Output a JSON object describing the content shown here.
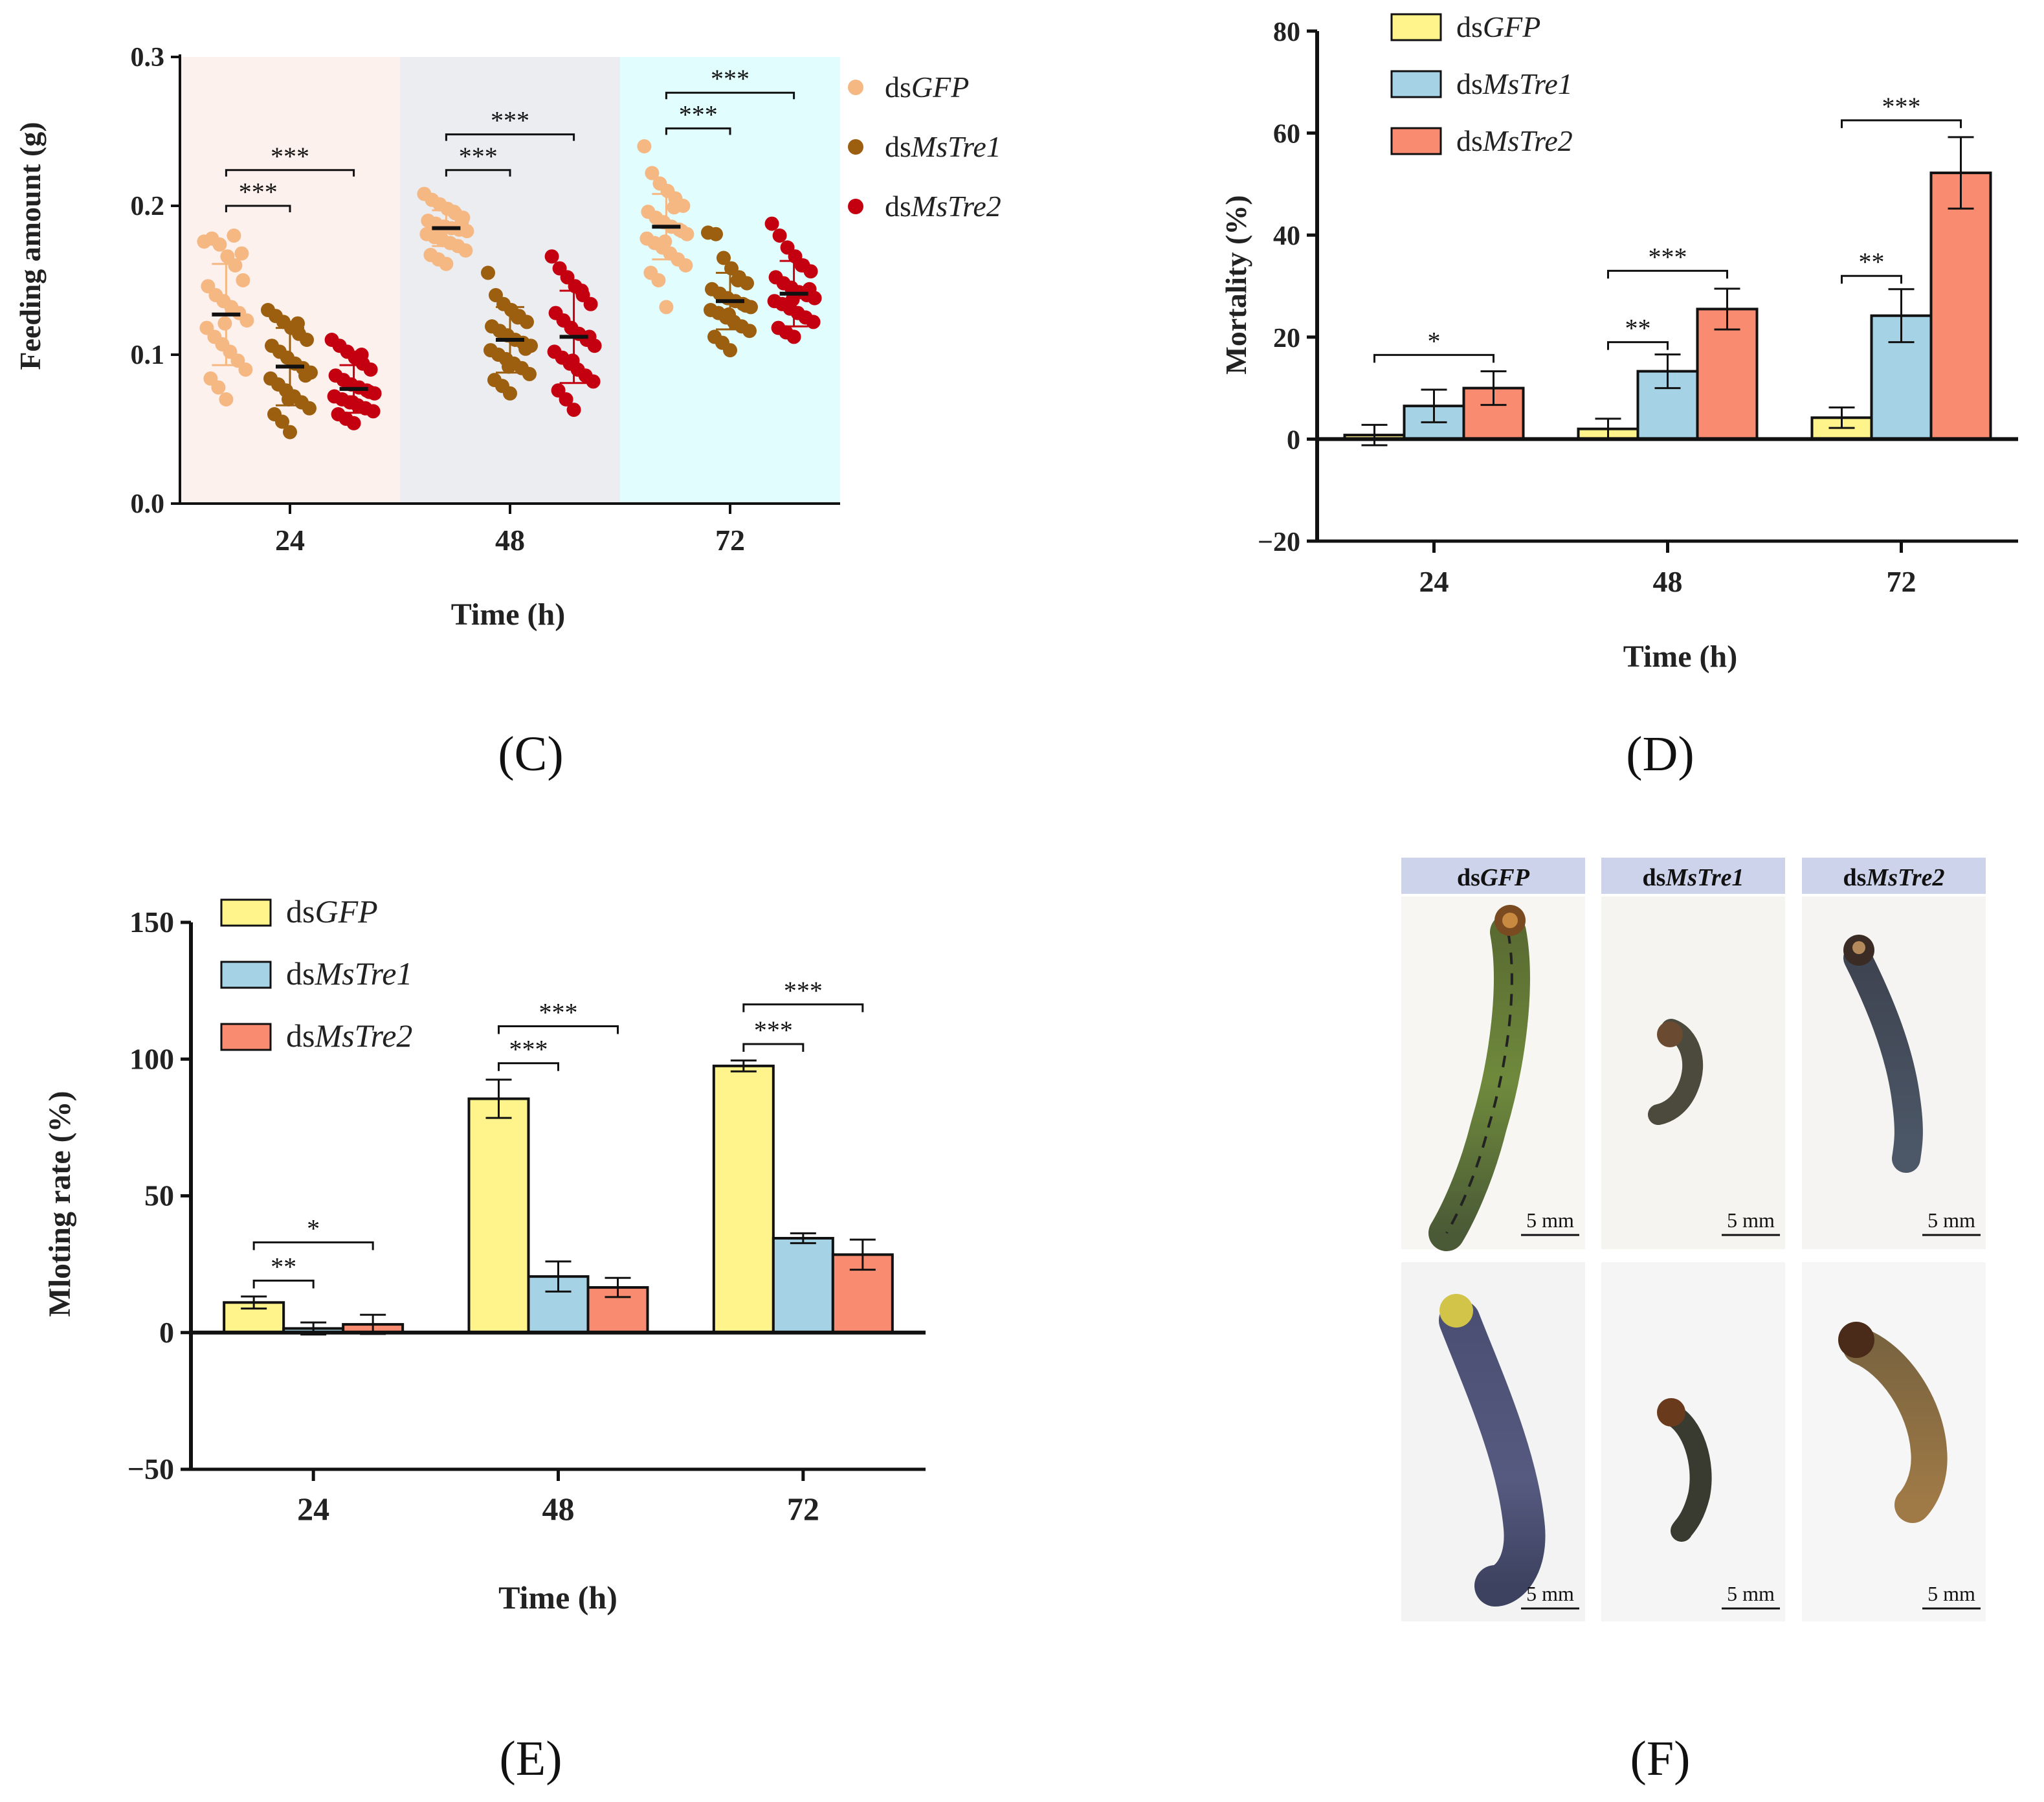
{
  "colors": {
    "gfp_dot": "#f6b883",
    "tre1_dot": "#9c5f10",
    "tre2_dot": "#c40010",
    "gfp_bar": "#fff38c",
    "tre1_bar": "#a6d2e6",
    "tre2_bar": "#f88b70",
    "bg_24": "#fdf1ee",
    "bg_48": "#ecedf1",
    "bg_72": "#e1fdfd",
    "img_header": "#cdd3ea"
  },
  "chart_data": [
    {
      "panel": "C",
      "type": "scatter",
      "panel_label": "(C)",
      "ylabel": "Feeding amount (g)",
      "xlabel": "Time (h)",
      "ylim": [
        0,
        0.3
      ],
      "yticks": [
        "0.0",
        "0.1",
        "0.2",
        "0.3"
      ],
      "categories": [
        "24",
        "48",
        "72"
      ],
      "legend_position": "right",
      "series": [
        {
          "prefix": "ds",
          "name": "GFP",
          "color_key": "gfp_dot",
          "means": [
            0.127,
            0.185,
            0.186
          ],
          "sd": [
            0.034,
            0.012,
            0.022
          ],
          "points": [
            [
              0.176,
              0.178,
              0.174,
              0.166,
              0.16,
              0.15,
              0.146,
              0.14,
              0.136,
              0.132,
              0.128,
              0.123,
              0.118,
              0.112,
              0.107,
              0.102,
              0.096,
              0.09,
              0.084,
              0.078,
              0.07,
              0.18,
              0.168,
              0.121
            ],
            [
              0.208,
              0.204,
              0.201,
              0.198,
              0.195,
              0.192,
              0.19,
              0.188,
              0.186,
              0.185,
              0.184,
              0.183,
              0.181,
              0.179,
              0.177,
              0.175,
              0.173,
              0.17,
              0.167,
              0.164,
              0.161,
              0.196,
              0.189,
              0.186
            ],
            [
              0.24,
              0.222,
              0.215,
              0.21,
              0.205,
              0.2,
              0.196,
              0.192,
              0.189,
              0.186,
              0.184,
              0.181,
              0.178,
              0.175,
              0.172,
              0.168,
              0.164,
              0.16,
              0.155,
              0.15,
              0.132,
              0.199,
              0.183,
              0.176
            ]
          ]
        },
        {
          "prefix": "ds",
          "name": "MsTre1",
          "color_key": "tre1_dot",
          "means": [
            0.092,
            0.11,
            0.136
          ],
          "sd": [
            0.026,
            0.022,
            0.019
          ],
          "points": [
            [
              0.13,
              0.126,
              0.122,
              0.118,
              0.114,
              0.11,
              0.106,
              0.102,
              0.098,
              0.094,
              0.091,
              0.088,
              0.084,
              0.08,
              0.076,
              0.072,
              0.068,
              0.064,
              0.06,
              0.055,
              0.048,
              0.121,
              0.086,
              0.07
            ],
            [
              0.155,
              0.14,
              0.134,
              0.13,
              0.126,
              0.122,
              0.119,
              0.116,
              0.113,
              0.11,
              0.108,
              0.106,
              0.103,
              0.1,
              0.097,
              0.094,
              0.091,
              0.087,
              0.083,
              0.079,
              0.074,
              0.125,
              0.104,
              0.092
            ],
            [
              0.182,
              0.181,
              0.165,
              0.158,
              0.152,
              0.148,
              0.144,
              0.141,
              0.138,
              0.136,
              0.134,
              0.132,
              0.13,
              0.128,
              0.125,
              0.122,
              0.119,
              0.116,
              0.112,
              0.108,
              0.103,
              0.15,
              0.133,
              0.127
            ]
          ]
        },
        {
          "prefix": "ds",
          "name": "MsTre2",
          "color_key": "tre2_dot",
          "means": [
            0.077,
            0.112,
            0.141
          ],
          "sd": [
            0.016,
            0.031,
            0.022
          ],
          "points": [
            [
              0.11,
              0.106,
              0.102,
              0.098,
              0.094,
              0.09,
              0.086,
              0.083,
              0.08,
              0.078,
              0.076,
              0.074,
              0.072,
              0.07,
              0.068,
              0.066,
              0.064,
              0.062,
              0.06,
              0.057,
              0.054,
              0.1,
              0.075,
              0.068
            ],
            [
              0.166,
              0.158,
              0.152,
              0.146,
              0.14,
              0.134,
              0.128,
              0.123,
              0.118,
              0.114,
              0.11,
              0.106,
              0.102,
              0.098,
              0.094,
              0.09,
              0.086,
              0.082,
              0.076,
              0.07,
              0.063,
              0.143,
              0.112,
              0.096
            ],
            [
              0.188,
              0.18,
              0.172,
              0.166,
              0.16,
              0.156,
              0.152,
              0.148,
              0.145,
              0.142,
              0.14,
              0.138,
              0.136,
              0.134,
              0.131,
              0.128,
              0.125,
              0.122,
              0.118,
              0.115,
              0.112,
              0.16,
              0.144,
              0.137
            ]
          ]
        }
      ],
      "significance": [
        {
          "group": 0,
          "from": 0,
          "to": 1,
          "label": "***",
          "y": 0.2
        },
        {
          "group": 0,
          "from": 0,
          "to": 2,
          "label": "***",
          "y": 0.224
        },
        {
          "group": 1,
          "from": 0,
          "to": 1,
          "label": "***",
          "y": 0.224
        },
        {
          "group": 1,
          "from": 0,
          "to": 2,
          "label": "***",
          "y": 0.248
        },
        {
          "group": 2,
          "from": 0,
          "to": 1,
          "label": "***",
          "y": 0.252
        },
        {
          "group": 2,
          "from": 0,
          "to": 2,
          "label": "***",
          "y": 0.276
        }
      ]
    },
    {
      "panel": "D",
      "type": "bar",
      "panel_label": "(D)",
      "ylabel": "Mortality (%)",
      "xlabel": "Time (h)",
      "ylim": [
        -20,
        80
      ],
      "yticks": [
        "−20",
        "0",
        "20",
        "40",
        "60",
        "80"
      ],
      "categories": [
        "24",
        "48",
        "72"
      ],
      "legend_position": "top-left",
      "series": [
        {
          "prefix": "ds",
          "name": "GFP",
          "color_key": "gfp_bar",
          "values": [
            0.8,
            2.0,
            4.2
          ],
          "err": [
            2.0,
            2.0,
            2.0
          ]
        },
        {
          "prefix": "ds",
          "name": "MsTre1",
          "color_key": "tre1_bar",
          "values": [
            6.5,
            13.3,
            24.2
          ],
          "err": [
            3.2,
            3.3,
            5.2
          ]
        },
        {
          "prefix": "ds",
          "name": "MsTre2",
          "color_key": "tre2_bar",
          "values": [
            10.0,
            25.5,
            52.2
          ],
          "err": [
            3.3,
            4.0,
            7.0
          ]
        }
      ],
      "significance": [
        {
          "group": 0,
          "from": 0,
          "to": 2,
          "label": "*",
          "y": 16.5
        },
        {
          "group": 1,
          "from": 0,
          "to": 1,
          "label": "**",
          "y": 19.0
        },
        {
          "group": 1,
          "from": 0,
          "to": 2,
          "label": "***",
          "y": 33.0
        },
        {
          "group": 2,
          "from": 0,
          "to": 1,
          "label": "**",
          "y": 32.0
        },
        {
          "group": 2,
          "from": 0,
          "to": 2,
          "label": "***",
          "y": 62.5
        }
      ]
    },
    {
      "panel": "E",
      "type": "bar",
      "panel_label": "(E)",
      "ylabel": "Mloting rate (%)",
      "xlabel": "Time (h)",
      "ylim": [
        -50,
        150
      ],
      "yticks": [
        "−50",
        "0",
        "50",
        "100",
        "150"
      ],
      "categories": [
        "24",
        "48",
        "72"
      ],
      "legend_position": "top-left",
      "series": [
        {
          "prefix": "ds",
          "name": "GFP",
          "color_key": "gfp_bar",
          "values": [
            11.0,
            85.5,
            97.5
          ],
          "err": [
            2.2,
            7.0,
            2.0
          ]
        },
        {
          "prefix": "ds",
          "name": "MsTre1",
          "color_key": "tre1_bar",
          "values": [
            1.5,
            20.5,
            34.5
          ],
          "err": [
            2.2,
            5.5,
            1.8
          ]
        },
        {
          "prefix": "ds",
          "name": "MsTre2",
          "color_key": "tre2_bar",
          "values": [
            3.0,
            16.5,
            28.5
          ],
          "err": [
            3.5,
            3.5,
            5.5
          ]
        }
      ],
      "significance": [
        {
          "group": 0,
          "from": 0,
          "to": 1,
          "label": "**",
          "y": 19.0
        },
        {
          "group": 0,
          "from": 0,
          "to": 2,
          "label": "*",
          "y": 33.0
        },
        {
          "group": 1,
          "from": 0,
          "to": 1,
          "label": "***",
          "y": 98.5
        },
        {
          "group": 1,
          "from": 0,
          "to": 2,
          "label": "***",
          "y": 112.0
        },
        {
          "group": 2,
          "from": 0,
          "to": 1,
          "label": "***",
          "y": 105.5
        },
        {
          "group": 2,
          "from": 0,
          "to": 2,
          "label": "***",
          "y": 120.0
        }
      ]
    }
  ],
  "panel_f": {
    "panel_label": "(F)",
    "columns": [
      {
        "prefix": "ds",
        "name": "GFP"
      },
      {
        "prefix": "ds",
        "name": "MsTre1"
      },
      {
        "prefix": "ds",
        "name": "MsTre2"
      }
    ],
    "scale_bar": "5 mm"
  }
}
